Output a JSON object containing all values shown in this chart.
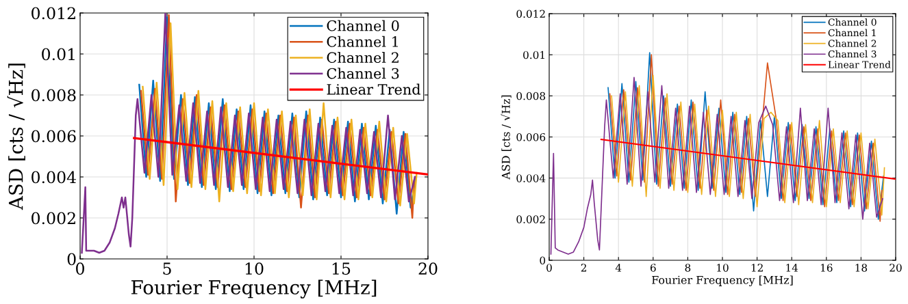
{
  "chart_data": [
    {
      "type": "line",
      "xlabel": "Fourier Frequency [MHz]",
      "ylabel": "ASD [cts / √Hz]",
      "xlim": [
        0,
        20
      ],
      "xticks": [
        0,
        5,
        10,
        15,
        20
      ],
      "ylim": [
        0,
        0.012
      ],
      "yticks": [
        0,
        0.002,
        0.004,
        0.006,
        0.008,
        0.01,
        0.012
      ],
      "grid": true,
      "legend": "top right",
      "series": [
        {
          "name": "Channel 0",
          "color": "#0072bd",
          "x": [
            3.4,
            3.8,
            4.2,
            4.6,
            5.0,
            5.4,
            5.8,
            6.2,
            6.6,
            7.0,
            7.4,
            7.8,
            8.2,
            8.6,
            9.0,
            9.4,
            9.8,
            10.2,
            10.6,
            11.0,
            11.4,
            11.8,
            12.2,
            12.6,
            13.0,
            13.4,
            13.8,
            14.2,
            14.6,
            15.0,
            15.4,
            15.8,
            16.2,
            16.6,
            17.0,
            17.4,
            17.8,
            18.2,
            18.6,
            19.0,
            19.3
          ],
          "values": [
            0.0085,
            0.004,
            0.0087,
            0.0038,
            0.0118,
            0.0039,
            0.008,
            0.0036,
            0.0079,
            0.0035,
            0.0076,
            0.0034,
            0.0078,
            0.0033,
            0.0073,
            0.0034,
            0.0075,
            0.0032,
            0.0072,
            0.0031,
            0.007,
            0.0032,
            0.0071,
            0.003,
            0.0072,
            0.0029,
            0.0069,
            0.0031,
            0.0068,
            0.003,
            0.0067,
            0.0028,
            0.0066,
            0.0029,
            0.0065,
            0.0027,
            0.0063,
            0.0022,
            0.0062,
            0.0025,
            0.004
          ]
        },
        {
          "name": "Channel 1",
          "color": "#d95319",
          "x": [
            3.5,
            3.9,
            4.3,
            4.7,
            5.1,
            5.5,
            5.9,
            6.3,
            6.7,
            7.1,
            7.5,
            7.9,
            8.3,
            8.7,
            9.1,
            9.5,
            9.9,
            10.3,
            10.7,
            11.1,
            11.5,
            11.9,
            12.3,
            12.7,
            13.1,
            13.5,
            13.9,
            14.3,
            14.7,
            15.1,
            15.5,
            15.9,
            16.3,
            16.7,
            17.1,
            17.5,
            17.9,
            18.3,
            18.7,
            19.1,
            19.2
          ],
          "values": [
            0.0082,
            0.0041,
            0.0083,
            0.0039,
            0.0119,
            0.0028,
            0.0078,
            0.0037,
            0.008,
            0.0036,
            0.0074,
            0.0035,
            0.0075,
            0.0034,
            0.0072,
            0.0035,
            0.0073,
            0.0033,
            0.0071,
            0.0032,
            0.007,
            0.0033,
            0.0069,
            0.0025,
            0.007,
            0.003,
            0.0068,
            0.0032,
            0.0067,
            0.0031,
            0.0066,
            0.003,
            0.0064,
            0.0031,
            0.0063,
            0.0029,
            0.0062,
            0.0027,
            0.0061,
            0.002,
            0.0038
          ]
        },
        {
          "name": "Channel 2",
          "color": "#edb120",
          "x": [
            3.6,
            4.0,
            4.4,
            4.8,
            5.2,
            5.6,
            6.0,
            6.4,
            6.8,
            7.2,
            7.6,
            8.0,
            8.4,
            8.8,
            9.2,
            9.6,
            10.0,
            10.4,
            10.8,
            11.2,
            11.6,
            12.0,
            12.4,
            12.8,
            13.2,
            13.6,
            14.0,
            14.4,
            14.8,
            15.2,
            15.6,
            16.0,
            16.4,
            16.8,
            17.2,
            17.6,
            18.0,
            18.4,
            18.8,
            19.2,
            19.35
          ],
          "values": [
            0.0084,
            0.0039,
            0.0086,
            0.0036,
            0.0115,
            0.0034,
            0.0081,
            0.0035,
            0.0082,
            0.0034,
            0.0077,
            0.0028,
            0.0076,
            0.0033,
            0.0074,
            0.0032,
            0.0076,
            0.0031,
            0.0073,
            0.0032,
            0.0072,
            0.003,
            0.007,
            0.0031,
            0.0073,
            0.0029,
            0.0076,
            0.003,
            0.0069,
            0.0029,
            0.0068,
            0.0029,
            0.0066,
            0.003,
            0.0067,
            0.0028,
            0.0064,
            0.0026,
            0.0061,
            0.0027,
            0.0042
          ]
        },
        {
          "name": "Channel 3",
          "color": "#7e2f8e",
          "x": [
            0.1,
            0.3,
            0.35,
            0.5,
            0.8,
            1.1,
            1.4,
            1.7,
            2.0,
            2.2,
            2.4,
            2.5,
            2.6,
            2.8,
            2.9,
            3.0,
            3.1,
            3.2,
            3.3,
            3.7,
            4.1,
            4.5,
            4.9,
            5.3,
            5.7,
            6.1,
            6.5,
            6.9,
            7.3,
            7.7,
            8.1,
            8.5,
            8.9,
            9.3,
            9.7,
            10.1,
            10.5,
            10.9,
            11.3,
            11.7,
            12.1,
            12.5,
            12.9,
            13.3,
            13.7,
            14.1,
            14.5,
            14.9,
            15.3,
            15.7,
            16.1,
            16.5,
            16.9,
            17.3,
            17.7,
            18.1,
            18.5,
            18.9,
            19.25
          ],
          "values": [
            0.0003,
            0.0035,
            0.0004,
            0.0004,
            0.0004,
            0.0003,
            0.0004,
            0.0008,
            0.0015,
            0.0022,
            0.003,
            0.0025,
            0.003,
            0.0012,
            0.0006,
            0.002,
            0.0045,
            0.007,
            0.0078,
            0.0042,
            0.008,
            0.004,
            0.012,
            0.0041,
            0.0075,
            0.0038,
            0.0076,
            0.0037,
            0.0072,
            0.0036,
            0.0074,
            0.0035,
            0.007,
            0.0036,
            0.0071,
            0.0034,
            0.0069,
            0.0033,
            0.0068,
            0.0034,
            0.0067,
            0.0032,
            0.0068,
            0.0031,
            0.0066,
            0.0033,
            0.0065,
            0.0032,
            0.0064,
            0.0031,
            0.0063,
            0.0032,
            0.0062,
            0.003,
            0.007,
            0.0029,
            0.006,
            0.0028,
            0.004
          ]
        },
        {
          "name": "Linear Trend",
          "color": "#ff0000",
          "type": "line",
          "x": [
            3.1,
            20
          ],
          "values": [
            0.0059,
            0.00412
          ]
        }
      ]
    },
    {
      "type": "line",
      "xlabel": "Fourier Frequency [MHz]",
      "ylabel": "ASD [cts / √Hz]",
      "xlim": [
        0,
        20
      ],
      "xticks": [
        0,
        2,
        4,
        6,
        8,
        10,
        12,
        14,
        16,
        18,
        20
      ],
      "ylim": [
        0,
        0.012
      ],
      "yticks": [
        0,
        0.002,
        0.004,
        0.006,
        0.008,
        0.01,
        0.012
      ],
      "grid": true,
      "legend": "top right",
      "series": [
        {
          "name": "Channel 0",
          "color": "#0072bd",
          "x": [
            3.4,
            3.8,
            4.2,
            4.6,
            5.0,
            5.4,
            5.8,
            6.2,
            6.6,
            7.0,
            7.4,
            7.8,
            8.2,
            8.6,
            9.0,
            9.4,
            9.8,
            10.2,
            10.6,
            11.0,
            11.4,
            11.8,
            12.2,
            12.6,
            13.0,
            13.4,
            13.8,
            14.2,
            14.6,
            15.0,
            15.4,
            15.8,
            16.2,
            16.6,
            17.0,
            17.4,
            17.8,
            18.2,
            18.6,
            19.0,
            19.3
          ],
          "values": [
            0.0084,
            0.004,
            0.0086,
            0.0038,
            0.0087,
            0.0039,
            0.0101,
            0.0037,
            0.008,
            0.0036,
            0.0076,
            0.0035,
            0.0078,
            0.0034,
            0.0082,
            0.0035,
            0.0074,
            0.0033,
            0.0072,
            0.0032,
            0.007,
            0.0024,
            0.0068,
            0.0031,
            0.007,
            0.003,
            0.0067,
            0.0029,
            0.0066,
            0.003,
            0.0065,
            0.0027,
            0.0064,
            0.0028,
            0.0063,
            0.0026,
            0.0062,
            0.0024,
            0.0058,
            0.002,
            0.0041
          ]
        },
        {
          "name": "Channel 1",
          "color": "#d95319",
          "x": [
            3.5,
            3.9,
            4.3,
            4.7,
            5.1,
            5.5,
            5.9,
            6.3,
            6.7,
            7.1,
            7.5,
            7.9,
            8.3,
            8.7,
            9.1,
            9.5,
            9.9,
            10.3,
            10.7,
            11.1,
            11.5,
            11.9,
            12.3,
            12.6,
            13.1,
            13.5,
            13.9,
            14.3,
            14.7,
            15.1,
            15.5,
            15.9,
            16.3,
            16.7,
            17.1,
            17.5,
            17.9,
            18.3,
            18.7,
            19.1,
            19.2
          ],
          "values": [
            0.0081,
            0.0041,
            0.0083,
            0.0039,
            0.0084,
            0.0038,
            0.01,
            0.0036,
            0.0079,
            0.0037,
            0.0075,
            0.0034,
            0.0077,
            0.0035,
            0.0073,
            0.0034,
            0.0078,
            0.0032,
            0.0071,
            0.0033,
            0.0069,
            0.0031,
            0.0067,
            0.0096,
            0.0069,
            0.0029,
            0.0066,
            0.0031,
            0.0065,
            0.0029,
            0.0064,
            0.0026,
            0.0063,
            0.0029,
            0.0062,
            0.0027,
            0.0061,
            0.0025,
            0.0057,
            0.0019,
            0.0034
          ]
        },
        {
          "name": "Channel 2",
          "color": "#edb120",
          "x": [
            3.6,
            4.0,
            4.4,
            4.8,
            5.2,
            5.6,
            6.0,
            6.4,
            6.8,
            7.2,
            7.6,
            8.0,
            8.4,
            8.8,
            9.2,
            9.6,
            10.0,
            10.4,
            10.8,
            11.2,
            11.6,
            12.0,
            12.4,
            12.8,
            13.2,
            13.6,
            14.0,
            14.4,
            14.8,
            15.2,
            15.6,
            16.0,
            16.4,
            16.8,
            17.2,
            17.6,
            18.0,
            18.4,
            18.8,
            19.2,
            19.35
          ],
          "values": [
            0.008,
            0.0038,
            0.0082,
            0.0036,
            0.0085,
            0.0031,
            0.009,
            0.0035,
            0.0081,
            0.0034,
            0.0077,
            0.0033,
            0.0076,
            0.0032,
            0.0075,
            0.0031,
            0.0073,
            0.0031,
            0.0072,
            0.003,
            0.0071,
            0.0026,
            0.0069,
            0.0072,
            0.0068,
            0.0028,
            0.0067,
            0.0027,
            0.0066,
            0.0028,
            0.0068,
            0.0026,
            0.0064,
            0.0028,
            0.0063,
            0.0026,
            0.0062,
            0.0025,
            0.0059,
            0.0022,
            0.0045
          ]
        },
        {
          "name": "Channel 3",
          "color": "#7e2f8e",
          "x": [
            0.1,
            0.25,
            0.35,
            0.5,
            0.8,
            1.1,
            1.4,
            1.7,
            2.0,
            2.2,
            2.4,
            2.5,
            2.6,
            2.8,
            2.9,
            3.0,
            3.1,
            3.2,
            3.3,
            3.7,
            4.1,
            4.5,
            4.9,
            5.3,
            5.7,
            6.1,
            6.5,
            6.9,
            7.3,
            7.7,
            8.1,
            8.5,
            8.9,
            9.3,
            9.7,
            10.1,
            10.5,
            10.9,
            11.3,
            11.7,
            12.1,
            12.5,
            12.9,
            13.3,
            13.7,
            14.1,
            14.5,
            14.9,
            15.3,
            15.7,
            16.1,
            16.5,
            16.9,
            17.3,
            17.7,
            18.1,
            18.5,
            18.9,
            19.25
          ],
          "values": [
            0.0003,
            0.0052,
            0.0006,
            0.0005,
            0.0004,
            0.0003,
            0.0004,
            0.0009,
            0.0016,
            0.0025,
            0.0032,
            0.0039,
            0.0028,
            0.001,
            0.0005,
            0.0025,
            0.0045,
            0.0065,
            0.0078,
            0.004,
            0.0081,
            0.0037,
            0.0089,
            0.0036,
            0.0082,
            0.0038,
            0.0085,
            0.0035,
            0.0074,
            0.0034,
            0.0075,
            0.0033,
            0.0072,
            0.0032,
            0.0071,
            0.0032,
            0.007,
            0.0031,
            0.0068,
            0.003,
            0.0067,
            0.0075,
            0.0066,
            0.0029,
            0.0065,
            0.0028,
            0.0074,
            0.0029,
            0.0064,
            0.0027,
            0.0074,
            0.0028,
            0.0062,
            0.0025,
            0.0061,
            0.002,
            0.0057,
            0.0021,
            0.003
          ]
        },
        {
          "name": "Linear Trend",
          "color": "#ff0000",
          "type": "line",
          "x": [
            3.0,
            20
          ],
          "values": [
            0.00588,
            0.00395
          ]
        }
      ]
    }
  ]
}
